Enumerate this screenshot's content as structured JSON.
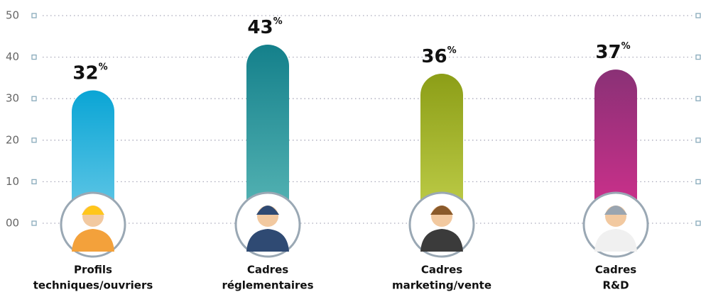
{
  "chart_data": {
    "type": "bar",
    "categories": [
      [
        "Profils",
        "techniques/ouvriers"
      ],
      [
        "Cadres",
        "réglementaires"
      ],
      [
        "Cadres",
        "marketing/vente"
      ],
      [
        "Cadres",
        "R&D"
      ]
    ],
    "values": [
      32,
      43,
      36,
      37
    ],
    "value_labels": [
      "32%",
      "43%",
      "36%",
      "37%"
    ],
    "colors": [
      [
        "#0aa5d5",
        "#6ccbe8"
      ],
      [
        "#14808b",
        "#5cb9b8"
      ],
      [
        "#8c9e17",
        "#c4d24e"
      ],
      [
        "#8a3176",
        "#d62f8e"
      ]
    ],
    "ylim": [
      0,
      50
    ],
    "yticks": [
      {
        "value": 0,
        "label": "00"
      },
      10,
      20,
      30,
      40,
      50
    ],
    "grid": true
  }
}
